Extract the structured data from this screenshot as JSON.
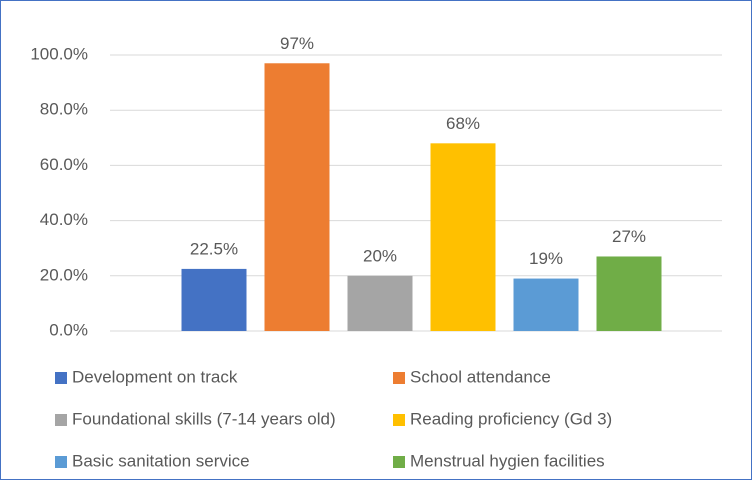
{
  "chart_data": {
    "type": "bar",
    "categories": [
      null
    ],
    "series": [
      {
        "name": "Development on track",
        "color": "#4472c4",
        "values": [
          22.5
        ],
        "value_labels": [
          "22.5%"
        ]
      },
      {
        "name": "School attendance",
        "color": "#ed7d31",
        "values": [
          97
        ],
        "value_labels": [
          "97%"
        ]
      },
      {
        "name": "Foundational skills (7-14 years old)",
        "color": "#a5a5a5",
        "values": [
          20
        ],
        "value_labels": [
          "20%"
        ]
      },
      {
        "name": "Reading proficiency (Gd 3)",
        "color": "#ffc000",
        "values": [
          68
        ],
        "value_labels": [
          "68%"
        ]
      },
      {
        "name": "Basic sanitation service",
        "color": "#5b9bd5",
        "values": [
          19
        ],
        "value_labels": [
          "19%"
        ]
      },
      {
        "name": "Menstrual hygien facilities",
        "color": "#70ad47",
        "values": [
          27
        ],
        "value_labels": [
          "27%"
        ]
      }
    ],
    "ylim": [
      0,
      100
    ],
    "yticks": [
      {
        "value": 0,
        "label": "0.0%"
      },
      {
        "value": 20,
        "label": "20.0%"
      },
      {
        "value": 40,
        "label": "40.0%"
      },
      {
        "value": 60,
        "label": "60.0%"
      },
      {
        "value": 80,
        "label": "80.0%"
      },
      {
        "value": 100,
        "label": "100.0%"
      }
    ],
    "grid": true,
    "legend": "bottom"
  }
}
